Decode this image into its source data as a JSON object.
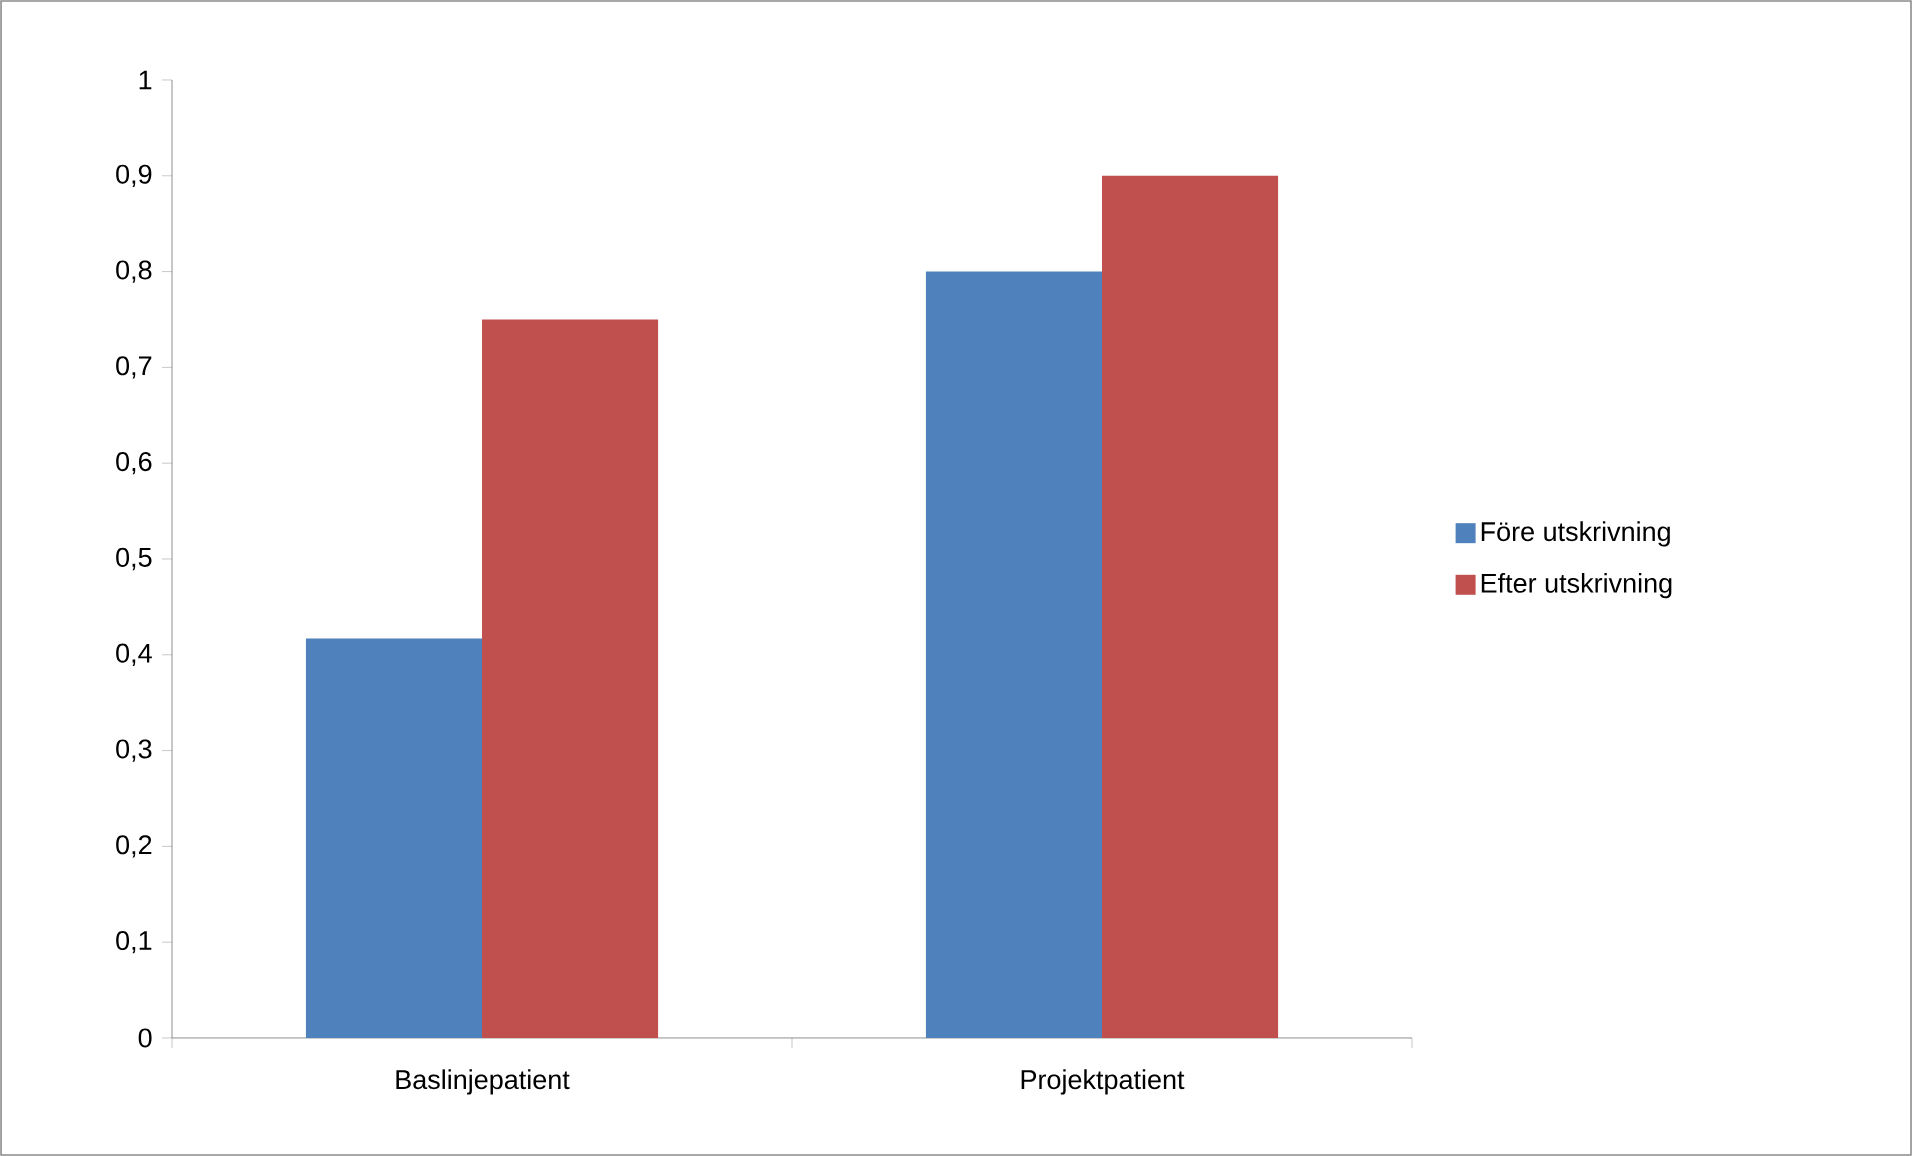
{
  "chart_data": {
    "type": "bar",
    "categories": [
      "Baslinjepatient",
      "Projektpatient"
    ],
    "series": [
      {
        "name": "Före utskrivning",
        "color": "#4f81bd",
        "values": [
          0.417,
          0.8
        ]
      },
      {
        "name": "Efter utskrivning",
        "color": "#c0504d",
        "values": [
          0.75,
          0.9
        ]
      }
    ],
    "ylim": [
      0,
      1
    ],
    "yticks": [
      0,
      {
        "value": 0.1,
        "label": "0,1"
      },
      {
        "value": 0.2,
        "label": "0,2"
      },
      {
        "value": 0.3,
        "label": "0,3"
      },
      {
        "value": 0.4,
        "label": "0,4"
      },
      {
        "value": 0.5,
        "label": "0,5"
      },
      {
        "value": 0.6,
        "label": "0,6"
      },
      {
        "value": 0.7,
        "label": "0,7"
      },
      {
        "value": 0.8,
        "label": "0,8"
      },
      {
        "value": 0.9,
        "label": "0,9"
      },
      1
    ],
    "grid": false,
    "legend": "right"
  }
}
